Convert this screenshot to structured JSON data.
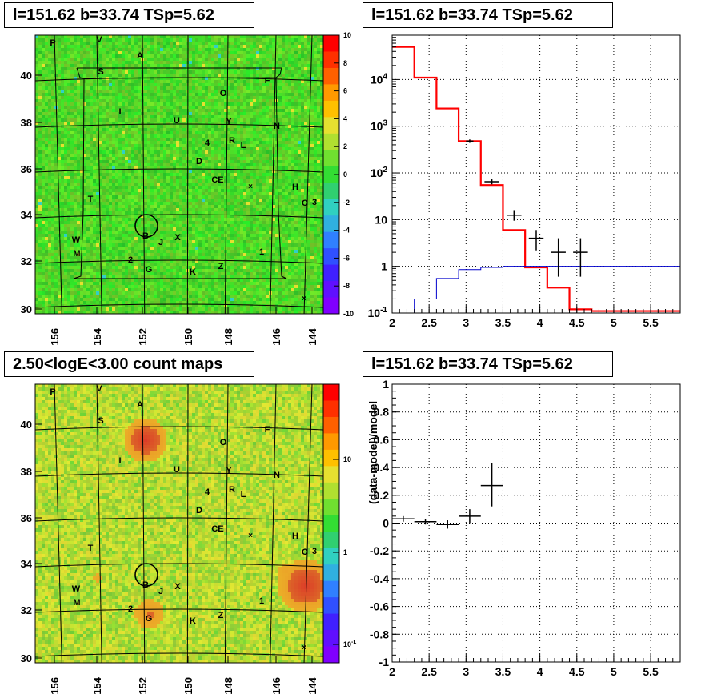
{
  "panels": {
    "tl_title": "l=151.62 b=33.74 TSp=5.62",
    "tr_title": "l=151.62 b=33.74 TSp=5.62",
    "bl_title": "2.50<logE<3.00 count maps",
    "br_title": "l=151.62 b=33.74 TSp=5.62",
    "br_ylabel": "(data-model)/model"
  },
  "colors": {
    "map_green": "#33dd33",
    "map_yellow": "#d8e637",
    "spectrum_red": "#ff0000",
    "model_blue": "#0000cc"
  },
  "source_labels": [
    "P",
    "V",
    "A",
    "S",
    "F",
    "O",
    "I",
    "U",
    "Y",
    "N",
    "4",
    "R",
    "L",
    "D",
    "CE",
    "H",
    "C",
    "3",
    "T",
    "W",
    "B",
    "J",
    "X",
    "M",
    "2",
    "G",
    "K",
    "Z",
    "1"
  ],
  "chart_data": [
    {
      "type": "heatmap",
      "name": "residual significance map",
      "x_ticks": [
        "156",
        "154",
        "152",
        "150",
        "148",
        "146",
        "144"
      ],
      "y_ticks": [
        "40",
        "38",
        "36",
        "34",
        "32",
        "30"
      ],
      "colorbar_ticks": [
        "10",
        "8",
        "6",
        "4",
        "2",
        "0",
        "-2",
        "-4",
        "-6",
        "-8",
        "-10"
      ],
      "colorbar_range": [
        -10,
        10
      ]
    },
    {
      "type": "line",
      "name": "counts spectrum",
      "log_y": true,
      "xlim": [
        2,
        6
      ],
      "x_ticks": [
        "2",
        "2.5",
        "3",
        "3.5",
        "4",
        "4.5",
        "5",
        "5.5"
      ],
      "y_ticks": [
        "10^-1",
        "1",
        "10",
        "10^2",
        "10^3",
        "10^4"
      ],
      "series": [
        {
          "kind": "model_step",
          "bins": [
            [
              2.0,
              2.3,
              50000
            ],
            [
              2.3,
              2.6,
              11000
            ],
            [
              2.6,
              2.9,
              2400
            ],
            [
              2.9,
              3.2,
              480
            ],
            [
              3.2,
              3.5,
              55
            ],
            [
              3.5,
              3.8,
              6
            ],
            [
              3.8,
              4.1,
              0.95
            ],
            [
              4.1,
              4.4,
              0.35
            ],
            [
              4.4,
              4.7,
              0.12
            ],
            [
              4.7,
              6.0,
              0.11
            ]
          ]
        },
        {
          "kind": "source_step",
          "bins": [
            [
              2.0,
              2.3,
              0.08
            ],
            [
              2.3,
              2.6,
              0.2
            ],
            [
              2.6,
              2.9,
              0.55
            ],
            [
              2.9,
              3.2,
              0.85
            ],
            [
              3.2,
              3.5,
              0.95
            ],
            [
              3.5,
              6.0,
              1.0
            ]
          ]
        },
        {
          "kind": "data_points",
          "points": [
            [
              3.05,
              480,
              3.0,
              3.1,
              440,
              520
            ],
            [
              3.35,
              65,
              3.25,
              3.45,
              57,
              74
            ],
            [
              3.65,
              12.5,
              3.55,
              3.75,
              9.5,
              16
            ],
            [
              3.95,
              4,
              3.85,
              4.05,
              2.2,
              6
            ],
            [
              4.25,
              2,
              4.15,
              4.35,
              0.6,
              4
            ],
            [
              4.55,
              2,
              4.45,
              4.65,
              0.6,
              4
            ]
          ]
        }
      ]
    },
    {
      "type": "heatmap",
      "name": "count map",
      "x_ticks": [
        "156",
        "154",
        "152",
        "150",
        "148",
        "146",
        "144"
      ],
      "y_ticks": [
        "40",
        "38",
        "36",
        "34",
        "32",
        "30"
      ],
      "colorbar_ticks": [
        "10",
        "1",
        "10^-1"
      ]
    },
    {
      "type": "scatter",
      "name": "residuals",
      "ylabel": "(data-model)/model",
      "xlim": [
        2,
        6
      ],
      "ylim": [
        -1,
        1
      ],
      "x_ticks": [
        "2",
        "2.5",
        "3",
        "3.5",
        "4",
        "4.5",
        "5",
        "5.5"
      ],
      "y_ticks": [
        "1",
        "0.8",
        "0.6",
        "0.4",
        "0.2",
        "0",
        "-0.2",
        "-0.4",
        "-0.6",
        "-0.8",
        "-1"
      ],
      "points": [
        [
          2.15,
          0.03,
          2.0,
          2.3,
          0.01,
          0.05
        ],
        [
          2.45,
          0.01,
          2.3,
          2.6,
          -0.01,
          0.03
        ],
        [
          2.75,
          -0.01,
          2.6,
          2.9,
          -0.04,
          0.02
        ],
        [
          3.05,
          0.05,
          2.9,
          3.2,
          0.0,
          0.1
        ],
        [
          3.35,
          0.27,
          3.2,
          3.5,
          0.12,
          0.43
        ]
      ]
    }
  ]
}
